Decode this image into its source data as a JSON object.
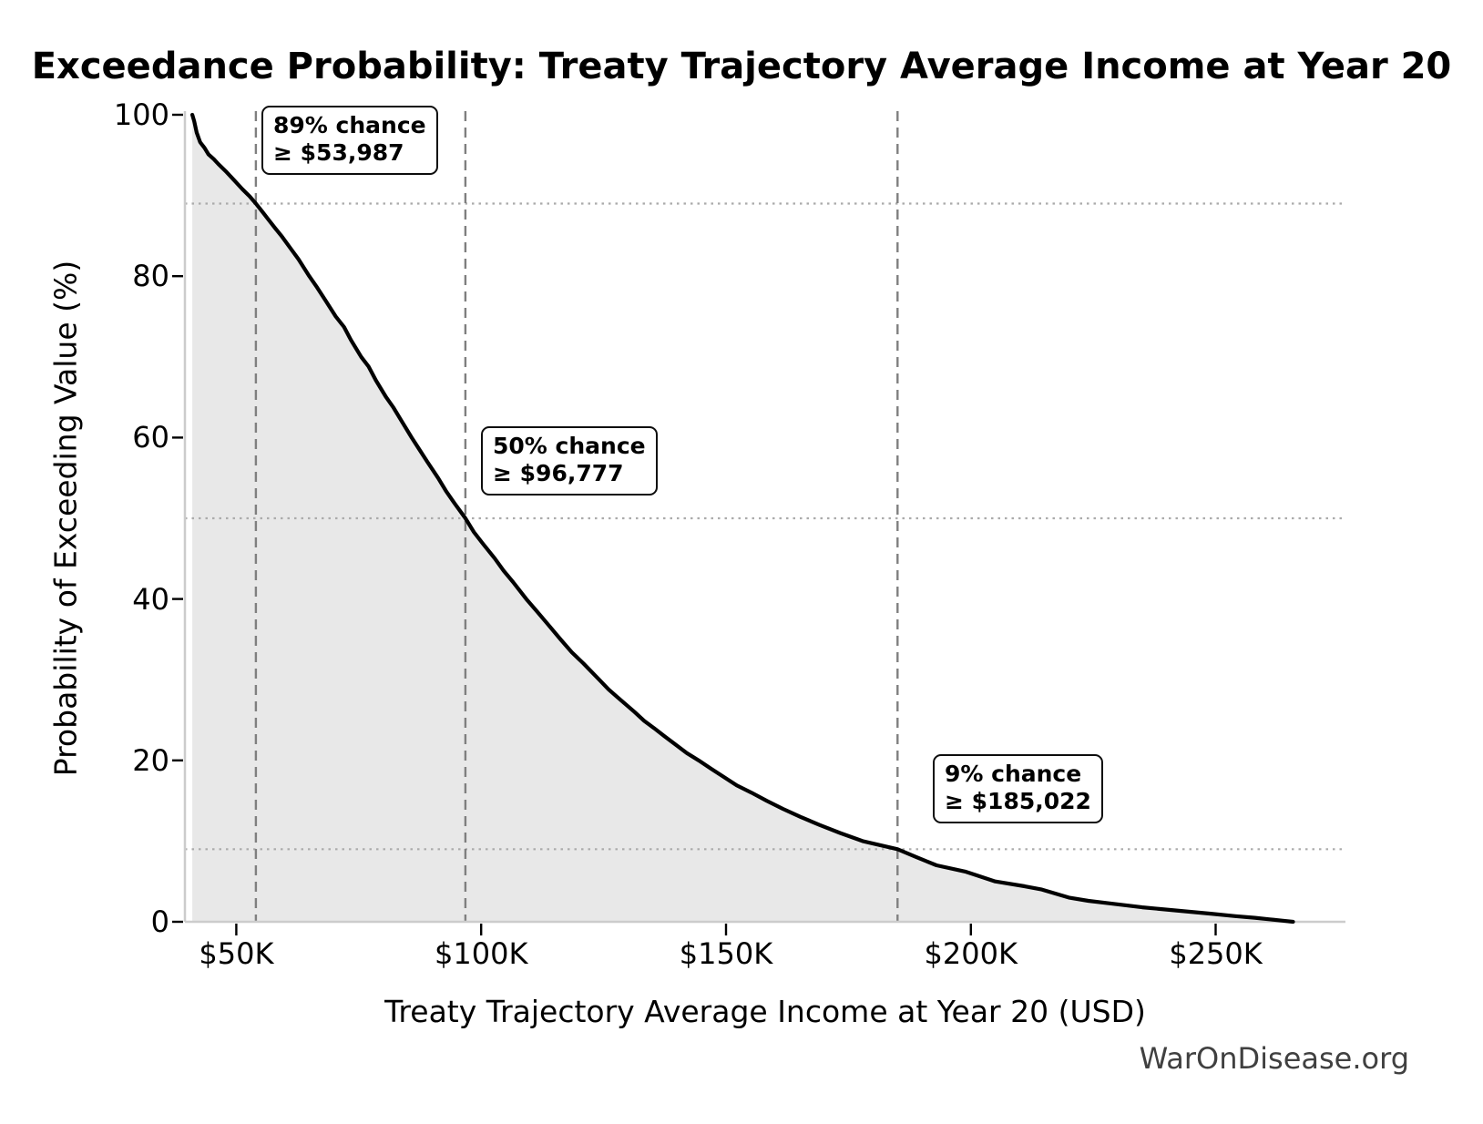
{
  "watermark": "WarOnDisease.org",
  "chart_data": {
    "type": "line",
    "title": "Exceedance Probability: Treaty Trajectory Average Income at Year 20",
    "xlabel": "Treaty Trajectory Average Income at Year 20 (USD)",
    "ylabel": "Probability of Exceeding Value (%)",
    "xlim": [
      39500,
      276500
    ],
    "ylim": [
      0,
      100
    ],
    "x_ticks": [
      50000,
      100000,
      150000,
      200000,
      250000
    ],
    "x_tick_labels": [
      "$50K",
      "$100K",
      "$150K",
      "$200K",
      "$250K"
    ],
    "y_ticks": [
      0,
      20,
      40,
      60,
      80,
      100
    ],
    "y_tick_labels": [
      "0",
      "20",
      "40",
      "60",
      "80",
      "100"
    ],
    "grid": "off",
    "legend": "none",
    "series": [
      {
        "name": "Exceedance probability of treaty trajectory average income at Year 20",
        "points": [
          [
            41000,
            100
          ],
          [
            41400,
            99.2
          ],
          [
            41900,
            97.8
          ],
          [
            42600,
            96.6
          ],
          [
            43500,
            95.9
          ],
          [
            44300,
            95.1
          ],
          [
            45400,
            94.5
          ],
          [
            46300,
            93.9
          ],
          [
            48000,
            92.9
          ],
          [
            49700,
            91.8
          ],
          [
            51200,
            90.8
          ],
          [
            52700,
            89.9
          ],
          [
            53987,
            89
          ],
          [
            55300,
            88
          ],
          [
            56700,
            86.9
          ],
          [
            58000,
            85.9
          ],
          [
            59200,
            85
          ],
          [
            61000,
            83.5
          ],
          [
            62700,
            82.1
          ],
          [
            64900,
            80
          ],
          [
            66500,
            78.6
          ],
          [
            68100,
            77.1
          ],
          [
            70300,
            75
          ],
          [
            72000,
            73.7
          ],
          [
            73400,
            72.1
          ],
          [
            75500,
            70
          ],
          [
            77000,
            68.8
          ],
          [
            78500,
            67.1
          ],
          [
            80600,
            65
          ],
          [
            82100,
            63.7
          ],
          [
            83700,
            62.1
          ],
          [
            85800,
            60
          ],
          [
            87400,
            58.5
          ],
          [
            89000,
            57
          ],
          [
            91200,
            55
          ],
          [
            92800,
            53.4
          ],
          [
            94500,
            51.9
          ],
          [
            96777,
            50
          ],
          [
            98500,
            48.3
          ],
          [
            100300,
            46.9
          ],
          [
            102800,
            45
          ],
          [
            104600,
            43.5
          ],
          [
            106500,
            42.1
          ],
          [
            109200,
            40
          ],
          [
            111200,
            38.6
          ],
          [
            113300,
            37.1
          ],
          [
            116200,
            35
          ],
          [
            118500,
            33.4
          ],
          [
            120900,
            32
          ],
          [
            124100,
            30
          ],
          [
            126000,
            28.8
          ],
          [
            127700,
            27.9
          ],
          [
            131300,
            26
          ],
          [
            133300,
            24.9
          ],
          [
            135300,
            24
          ],
          [
            137400,
            23
          ],
          [
            139600,
            22
          ],
          [
            142000,
            20.9
          ],
          [
            144400,
            20
          ],
          [
            146900,
            19
          ],
          [
            149400,
            18
          ],
          [
            152200,
            16.9
          ],
          [
            155200,
            16
          ],
          [
            158300,
            15
          ],
          [
            161600,
            14
          ],
          [
            165200,
            13
          ],
          [
            169100,
            12
          ],
          [
            173300,
            11
          ],
          [
            177900,
            10
          ],
          [
            185022,
            9
          ],
          [
            188900,
            8
          ],
          [
            193000,
            7
          ],
          [
            199000,
            6.2
          ],
          [
            201000,
            5.8
          ],
          [
            205000,
            5
          ],
          [
            211000,
            4.4
          ],
          [
            214500,
            4
          ],
          [
            220000,
            3
          ],
          [
            224000,
            2.6
          ],
          [
            228000,
            2.3
          ],
          [
            235000,
            1.8
          ],
          [
            242000,
            1.4
          ],
          [
            249000,
            1
          ],
          [
            254000,
            0.7
          ],
          [
            258000,
            0.5
          ],
          [
            261000,
            0.3
          ],
          [
            263500,
            0.15
          ],
          [
            265800,
            0
          ]
        ]
      }
    ],
    "reference_lines": {
      "vertical_dashed_x": [
        53987,
        96777,
        185022
      ],
      "horizontal_dotted_p": [
        89,
        50,
        9
      ]
    },
    "annotations": [
      {
        "line1": "89% chance",
        "line2": "≥ $53,987",
        "x": 53987,
        "p": 89
      },
      {
        "line1": "50% chance",
        "line2": "≥ $96,777",
        "x": 96777,
        "p": 50
      },
      {
        "line1": "9% chance",
        "line2": "≥ $185,022",
        "x": 185022,
        "p": 9
      }
    ],
    "colors": {
      "curve": "#000000",
      "fill": "#e8e8e8",
      "dashed_line": "#7f7f7f",
      "dotted_line": "#ababab",
      "spine": "#cccccc",
      "tick": "#000000",
      "watermark": "#404040"
    }
  }
}
